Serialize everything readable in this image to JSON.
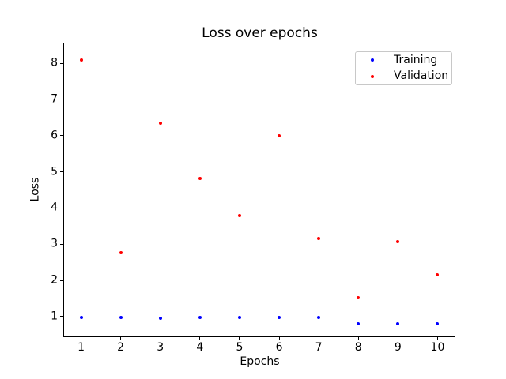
{
  "figure": {
    "background": "#ffffff"
  },
  "chart_data": {
    "type": "scatter",
    "title": "Loss over epochs",
    "xlabel": "Epochs",
    "ylabel": "Loss",
    "x": [
      1,
      2,
      3,
      4,
      5,
      6,
      7,
      8,
      9,
      10
    ],
    "series": [
      {
        "name": "Training",
        "color": "#0000ff",
        "values": [
          0.98,
          0.98,
          0.96,
          0.98,
          0.97,
          0.97,
          0.98,
          0.8,
          0.8,
          0.8
        ]
      },
      {
        "name": "Validation",
        "color": "#ff0000",
        "values": [
          8.1,
          2.77,
          6.35,
          4.81,
          3.78,
          6.0,
          3.15,
          1.52,
          3.08,
          2.15
        ]
      }
    ],
    "xticks": [
      1,
      2,
      3,
      4,
      5,
      6,
      7,
      8,
      9,
      10
    ],
    "yticks": [
      1,
      2,
      3,
      4,
      5,
      6,
      7,
      8
    ],
    "xlim": [
      0.55,
      10.45
    ],
    "ylim": [
      0.43,
      8.57
    ],
    "grid": false,
    "legend": {
      "position": "upper right",
      "entries": [
        "Training",
        "Validation"
      ]
    }
  }
}
